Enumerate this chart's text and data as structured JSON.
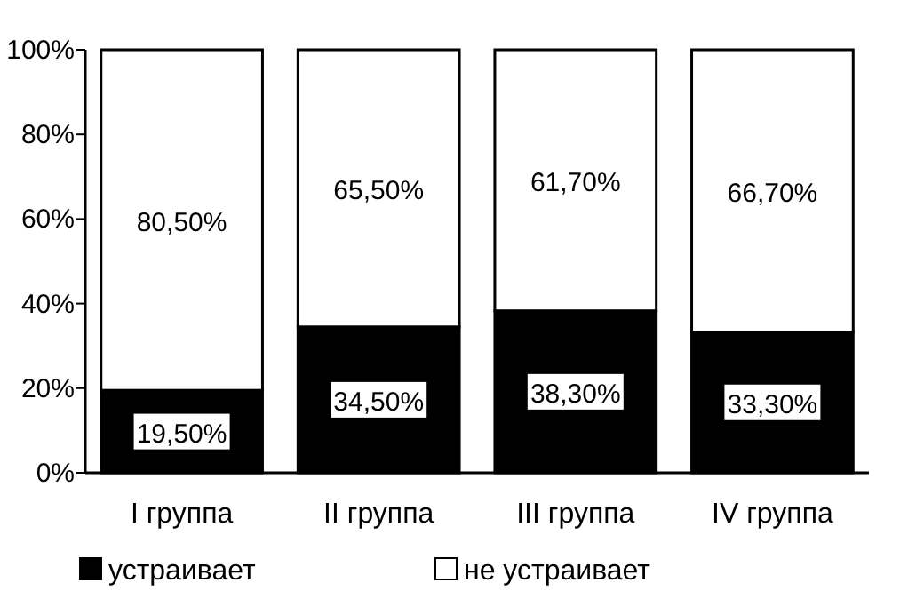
{
  "chart_data": {
    "type": "bar",
    "stacked": true,
    "categories": [
      "I группа",
      "II группа",
      "III группа",
      "IV группа"
    ],
    "series": [
      {
        "name": "устраивает",
        "color": "#000000",
        "values": [
          19.5,
          34.5,
          38.3,
          33.3
        ],
        "value_labels": [
          "19,50%",
          "34,50%",
          "38,30%",
          "33,30%"
        ]
      },
      {
        "name": "не устраивает",
        "color": "#ffffff",
        "values": [
          80.5,
          65.5,
          61.7,
          66.7
        ],
        "value_labels": [
          "80,50%",
          "65,50%",
          "61,70%",
          "66,70%"
        ]
      }
    ],
    "ylim": [
      0,
      100
    ],
    "yticks": [
      {
        "value": 0,
        "label": "0%"
      },
      {
        "value": 20,
        "label": "20%"
      },
      {
        "value": 40,
        "label": "40%"
      },
      {
        "value": 60,
        "label": "60%"
      },
      {
        "value": 80,
        "label": "80%"
      },
      {
        "value": 100,
        "label": "100%"
      }
    ],
    "grid": false,
    "legend": "bottom"
  }
}
